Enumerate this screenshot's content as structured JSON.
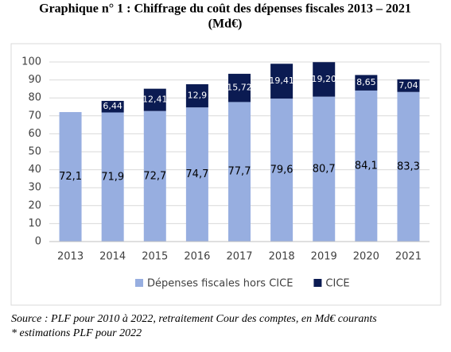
{
  "chart_data": {
    "type": "stacked-bar",
    "title": [
      "Graphique n° 1 : Chiffrage du coût des dépenses fiscales 2013 – 2021",
      "(Md€)"
    ],
    "categories": [
      "2013",
      "2014",
      "2015",
      "2016",
      "2017",
      "2018",
      "2019",
      "2020",
      "2021"
    ],
    "series": [
      {
        "name": "Dépenses fiscales hors CICE",
        "color": "#97aee0",
        "values": [
          72.1,
          71.9,
          72.7,
          74.7,
          77.7,
          79.6,
          80.7,
          84.1,
          83.3
        ],
        "value_labels": [
          "72,1",
          "71,9",
          "72,7",
          "74,7",
          "77,7",
          "79,6",
          "80,7",
          "84,1",
          "83,3"
        ]
      },
      {
        "name": "CICE",
        "color": "#0b1b52",
        "values": [
          null,
          6.44,
          12.41,
          12.9,
          15.72,
          19.41,
          19.2,
          8.65,
          7.04
        ],
        "value_labels": [
          null,
          "6,44",
          "12,41",
          "12,9",
          "15,72",
          "19,41",
          "19,20",
          "8,65",
          "7,04"
        ]
      }
    ],
    "ylim": [
      0,
      100
    ],
    "yticks": [
      0,
      10,
      20,
      30,
      40,
      50,
      60,
      70,
      80,
      90,
      100
    ],
    "grid": true,
    "legend": "bottom",
    "source": "Source : PLF pour 2010 à 2022, retraitement Cour des comptes, en Md€ courants",
    "note": "* estimations PLF pour 2022"
  }
}
